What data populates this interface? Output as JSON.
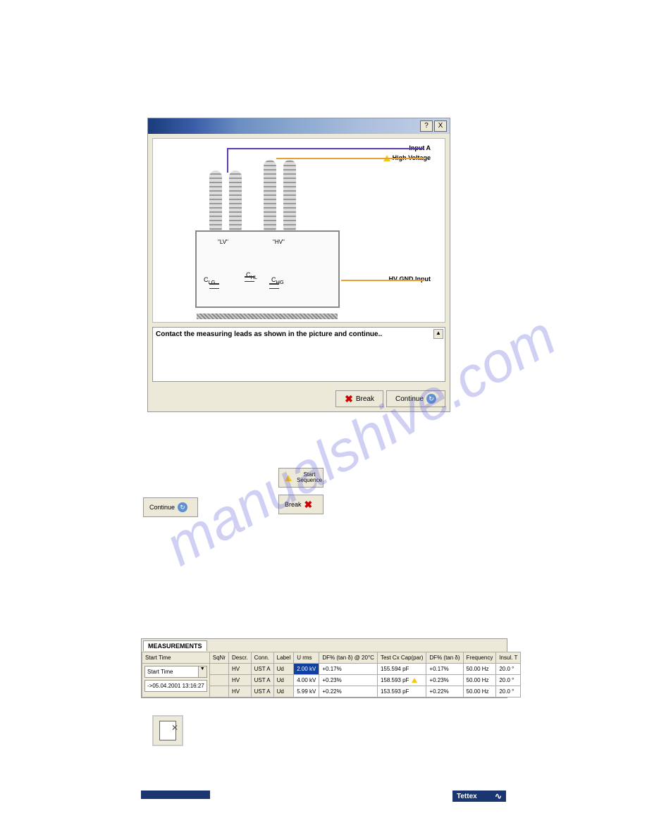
{
  "dialog": {
    "labels": {
      "input_a": "Input A",
      "high_voltage": "High Voltage",
      "hv_gnd": "HV GND Input",
      "lv": "\"LV\"",
      "hv": "\"HV\"",
      "clg": "C",
      "clg_sub": "LG",
      "chl": "C",
      "chl_sub": "HL",
      "chg": "C",
      "chg_sub": "HG"
    },
    "message": "Contact the measuring leads as shown in the picture and continue..",
    "buttons": {
      "break": "Break",
      "continue": "Continue"
    },
    "titlebar": {
      "help": "?",
      "close": "X"
    }
  },
  "standalone_buttons": {
    "start_sequence": "Start Sequence",
    "continue": "Continue",
    "break": "Break"
  },
  "measurements": {
    "tab": "MEASUREMENTS",
    "columns": [
      "Start Time",
      "SqNr",
      "Descr.",
      "Conn.",
      "Label",
      "U rms",
      "DF% (tan δ) @ 20°C",
      "Test Cx Cap(par)",
      "DF% (tan δ)",
      "Frequency",
      "Insul. T"
    ],
    "dropdown": {
      "title": "Start Time",
      "option": "->05.04.2001 13:16:27"
    },
    "rows": [
      {
        "descr": "HV",
        "conn": "UST A",
        "label": "Ud",
        "urms": "2.00 kV",
        "df20": "+0.17%",
        "cap": "155.594 pF",
        "df": "+0.17%",
        "freq": "50.00 Hz",
        "insul": "20.0 °",
        "highlight": true
      },
      {
        "descr": "HV",
        "conn": "UST A",
        "label": "Ud",
        "urms": "4.00 kV",
        "df20": "+0.23%",
        "cap": "158.593 pF",
        "df": "+0.23%",
        "freq": "50.00 Hz",
        "insul": "20.0 °",
        "highlight": false
      },
      {
        "descr": "HV",
        "conn": "UST A",
        "label": "Ud",
        "urms": "5.99 kV",
        "df20": "+0.22%",
        "cap": "153.593 pF",
        "df": "+0.22%",
        "freq": "50.00 Hz",
        "insul": "20.0 °",
        "highlight": false
      }
    ]
  },
  "logo": "Tettex",
  "watermark": "manualshive.com"
}
